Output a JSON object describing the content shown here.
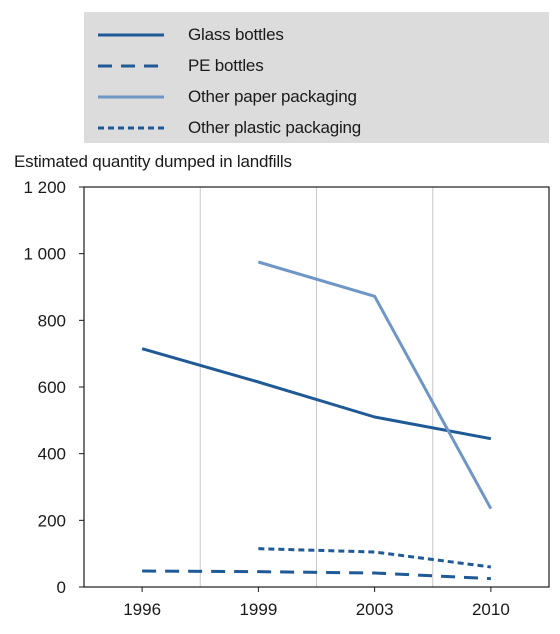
{
  "chart_data": {
    "type": "line",
    "ylabel": "Estimated quantity dumped in landfills",
    "xlabel": "",
    "x_categories": [
      "1996",
      "1999",
      "2003",
      "2010"
    ],
    "ylim": [
      0,
      1200
    ],
    "yticks": [
      0,
      200,
      400,
      600,
      800,
      1000,
      1200
    ],
    "ytick_labels": [
      "0",
      "200",
      "400",
      "600",
      "800",
      "1 000",
      "1 200"
    ],
    "grid": "vertical",
    "legend_position": "top",
    "series": [
      {
        "name": "Glass bottles",
        "color": "#1f5a96",
        "style": "solid",
        "points": [
          [
            "1996",
            715
          ],
          [
            "1999",
            615
          ],
          [
            "2003",
            510
          ],
          [
            "2010",
            445
          ]
        ]
      },
      {
        "name": "PE bottles",
        "color": "#1f5a96",
        "style": "dashed",
        "points": [
          [
            "1996",
            48
          ],
          [
            "1999",
            46
          ],
          [
            "2003",
            42
          ],
          [
            "2010",
            25
          ]
        ]
      },
      {
        "name": "Other paper packaging",
        "color": "#6f96c5",
        "style": "solid",
        "points": [
          [
            "1999",
            975
          ],
          [
            "2003",
            872
          ],
          [
            "2010",
            235
          ]
        ]
      },
      {
        "name": "Other plastic packaging",
        "color": "#1f5a96",
        "style": "dotted",
        "points": [
          [
            "1999",
            115
          ],
          [
            "2003",
            105
          ],
          [
            "2010",
            60
          ]
        ]
      }
    ]
  }
}
